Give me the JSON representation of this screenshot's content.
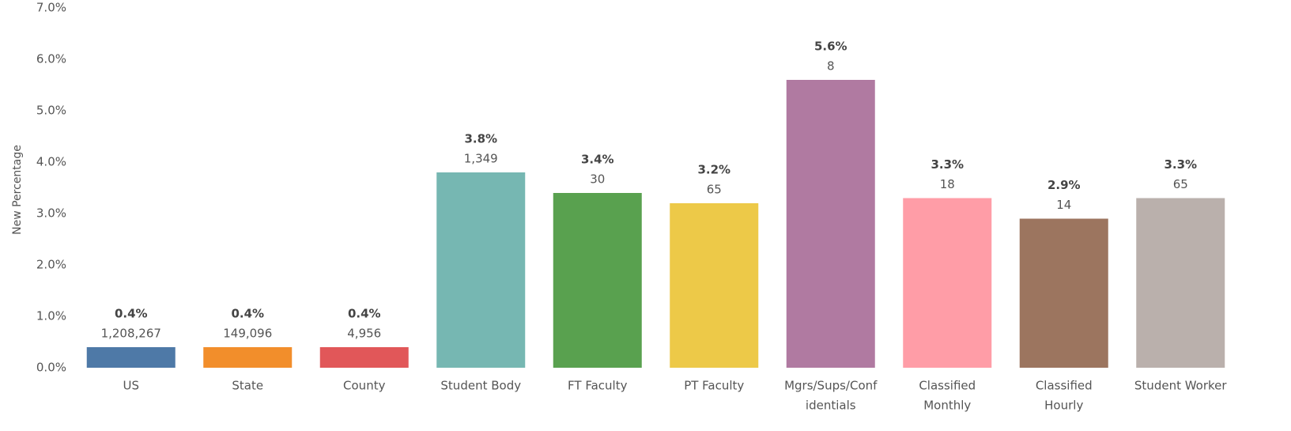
{
  "chart_data": {
    "type": "bar",
    "y_label": "New Percentage",
    "categories": [
      [
        "US"
      ],
      [
        "State"
      ],
      [
        "County"
      ],
      [
        "Student Body"
      ],
      [
        "FT Faculty"
      ],
      [
        "PT Faculty"
      ],
      [
        "Mgrs/Sups/Conf",
        "identials"
      ],
      [
        "Classified",
        "Monthly"
      ],
      [
        "Classified",
        "Hourly"
      ],
      [
        "Student Worker"
      ]
    ],
    "values": [
      0.4,
      0.4,
      0.4,
      3.8,
      3.4,
      3.2,
      5.6,
      3.3,
      2.9,
      3.3
    ],
    "value_labels": [
      "0.4%",
      "0.4%",
      "0.4%",
      "3.8%",
      "3.4%",
      "3.2%",
      "5.6%",
      "3.3%",
      "2.9%",
      "3.3%"
    ],
    "counts": [
      {
        "value": 1208267,
        "label": "1,208,267"
      },
      {
        "value": 149096,
        "label": "149,096"
      },
      {
        "value": 4956,
        "label": "4,956"
      },
      {
        "value": 1349,
        "label": "1,349"
      },
      {
        "value": 30,
        "label": "30"
      },
      {
        "value": 65,
        "label": "65"
      },
      {
        "value": 8,
        "label": "8"
      },
      {
        "value": 18,
        "label": "18"
      },
      {
        "value": 14,
        "label": "14"
      },
      {
        "value": 65,
        "label": "65"
      }
    ],
    "colors": [
      "#4e79a7",
      "#f28e2b",
      "#e15759",
      "#76b7b2",
      "#59a14f",
      "#edc948",
      "#b07aa1",
      "#ff9da7",
      "#9c755f",
      "#bab0ac"
    ],
    "ylim": [
      0,
      7
    ],
    "yticks": [
      {
        "value": 0,
        "label": "0.0%"
      },
      {
        "value": 1,
        "label": "1.0%"
      },
      {
        "value": 2,
        "label": "2.0%"
      },
      {
        "value": 3,
        "label": "3.0%"
      },
      {
        "value": 4,
        "label": "4.0%"
      },
      {
        "value": 5,
        "label": "5.0%"
      },
      {
        "value": 6,
        "label": "6.0%"
      },
      {
        "value": 7,
        "label": "7.0%"
      }
    ],
    "grid": false
  }
}
